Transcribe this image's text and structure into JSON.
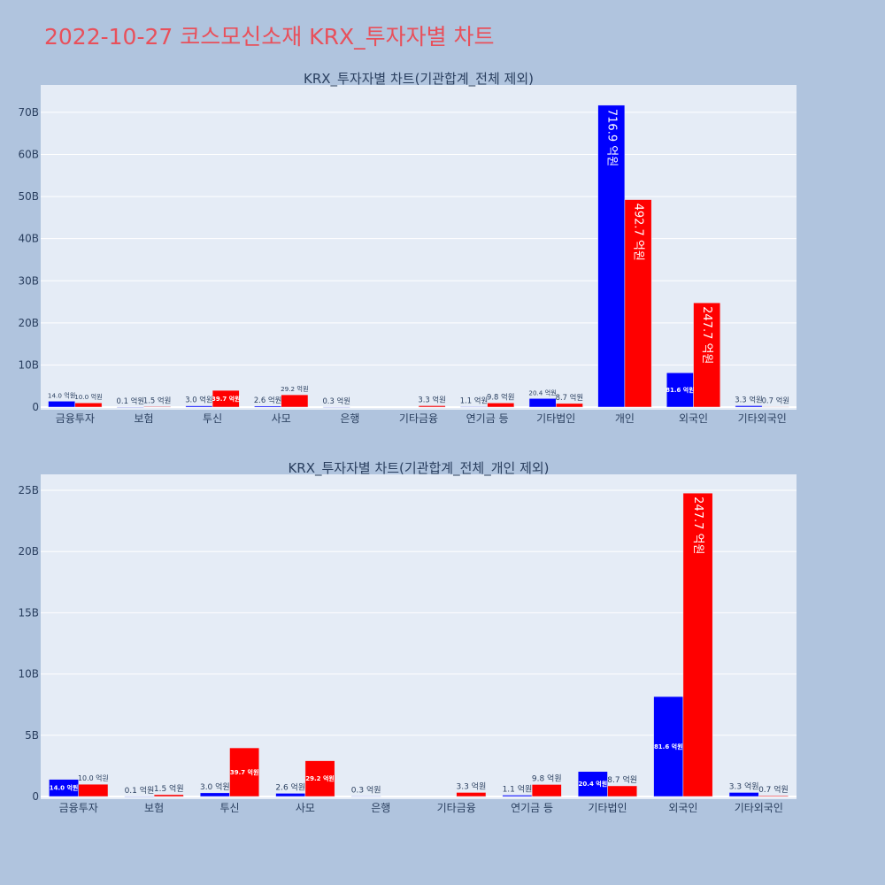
{
  "page_title": "2022-10-27 코스모신소재 KRX_투자자별 차트",
  "colors": {
    "series_1": "#0000ff",
    "series_2": "#ff0000",
    "plot_bg": "#e5ecf6",
    "page_bg": "#b0c4de",
    "title": "#e8505b"
  },
  "chart_data": [
    {
      "type": "bar",
      "title": "KRX_투자자별 차트(기관합계_전체 제외)",
      "categories": [
        "금융투자",
        "보험",
        "투신",
        "사모",
        "은행",
        "기타금융",
        "연기금 등",
        "기타법인",
        "개인",
        "외국인",
        "기타외국인"
      ],
      "series": [
        {
          "values": [
            1.4,
            0.01,
            0.3,
            0.26,
            0.03,
            0,
            0.11,
            2.04,
            71.69,
            8.16,
            0.33
          ],
          "labels": [
            "14.0 억원",
            "0.1 억원",
            "3.0 억원",
            "2.6 억원",
            "0.3 억원",
            "",
            "1.1 억원",
            "20.4 억원",
            "716.9 억원",
            "81.6 억원",
            "3.3 억원"
          ]
        },
        {
          "values": [
            1.0,
            0.15,
            3.97,
            2.92,
            0,
            0.33,
            0.98,
            0.87,
            49.27,
            24.77,
            0.07
          ],
          "labels": [
            "10.0 억원",
            "1.5 억원",
            "39.7 억원",
            "29.2 억원",
            "",
            "3.3 억원",
            "9.8 억원",
            "8.7 억원",
            "492.7 억원",
            "247.7 억원",
            "0.7 억원"
          ]
        }
      ],
      "yticks": [
        0,
        10,
        20,
        30,
        40,
        50,
        60,
        70
      ],
      "ytick_labels": [
        "0",
        "10B",
        "20B",
        "30B",
        "40B",
        "50B",
        "60B",
        "70B"
      ],
      "ylim": [
        0,
        76.5
      ],
      "grid": true
    },
    {
      "type": "bar",
      "title": "KRX_투자자별 차트(기관합계_전체_개인 제외)",
      "categories": [
        "금융투자",
        "보험",
        "투신",
        "사모",
        "은행",
        "기타금융",
        "연기금 등",
        "기타법인",
        "외국인",
        "기타외국인"
      ],
      "series": [
        {
          "values": [
            1.4,
            0.01,
            0.3,
            0.26,
            0.03,
            0,
            0.11,
            2.04,
            8.16,
            0.33
          ],
          "labels": [
            "14.0 억원",
            "0.1 억원",
            "3.0 억원",
            "2.6 억원",
            "0.3 억원",
            "",
            "1.1 억원",
            "20.4 억원",
            "81.6 억원",
            "3.3 억원"
          ]
        },
        {
          "values": [
            1.0,
            0.15,
            3.97,
            2.92,
            0,
            0.33,
            0.98,
            0.87,
            24.77,
            0.07
          ],
          "labels": [
            "10.0 억원",
            "1.5 억원",
            "39.7 억원",
            "29.2 억원",
            "",
            "3.3 억원",
            "9.8 억원",
            "8.7 억원",
            "247.7 억원",
            "0.7 억원"
          ]
        }
      ],
      "yticks": [
        0,
        5,
        10,
        15,
        20,
        25
      ],
      "ytick_labels": [
        "0",
        "5B",
        "10B",
        "15B",
        "20B",
        "25B"
      ],
      "ylim": [
        0,
        26.3
      ],
      "grid": true
    }
  ]
}
